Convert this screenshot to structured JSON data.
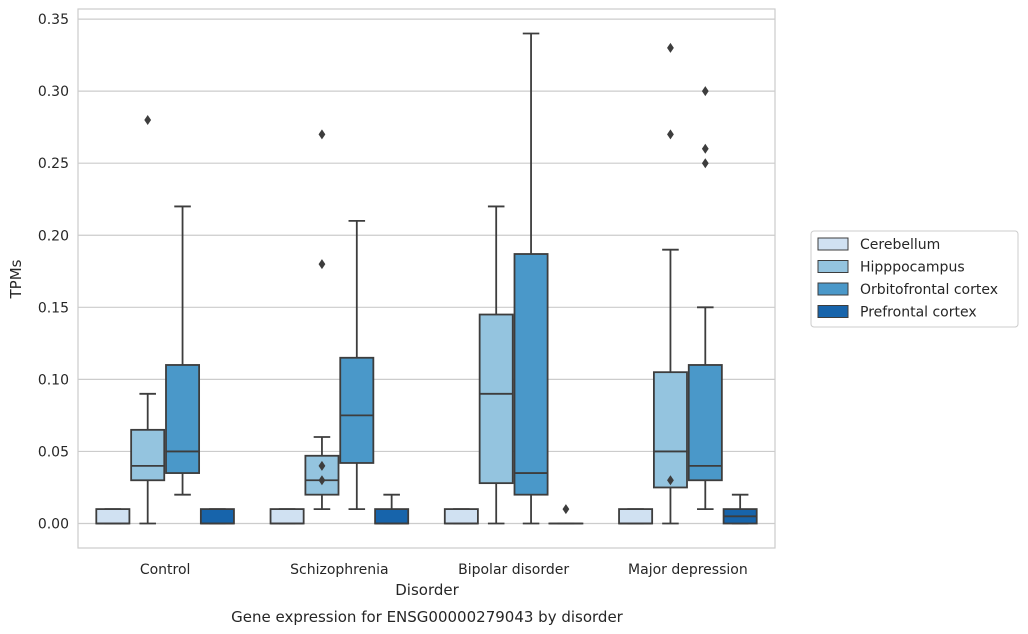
{
  "chart_data": {
    "type": "box",
    "title": "Gene expression for ENSG00000279043 by disorder",
    "xlabel": "Disorder",
    "ylabel": "TPMs",
    "ylim": [
      -0.017,
      0.357
    ],
    "yticks": [
      "0.00",
      "0.05",
      "0.10",
      "0.15",
      "0.20",
      "0.25",
      "0.30",
      "0.35"
    ],
    "categories": [
      "Control",
      "Schizophrenia",
      "Bipolar disorder",
      "Major depression"
    ],
    "grid": "horizontal",
    "legend_position": "right",
    "series": [
      {
        "name": "Cerebellum",
        "color": "#d0e1f2",
        "boxes": [
          {
            "q1": 0.0,
            "median": 0.0,
            "q3": 0.01,
            "whislo": 0.0,
            "whishi": 0.01,
            "fliers": []
          },
          {
            "q1": 0.0,
            "median": 0.0,
            "q3": 0.01,
            "whislo": 0.0,
            "whishi": 0.01,
            "fliers": []
          },
          {
            "q1": 0.0,
            "median": 0.0,
            "q3": 0.01,
            "whislo": 0.0,
            "whishi": 0.01,
            "fliers": []
          },
          {
            "q1": 0.0,
            "median": 0.0,
            "q3": 0.01,
            "whislo": 0.0,
            "whishi": 0.01,
            "fliers": []
          }
        ]
      },
      {
        "name": "Hipppocampus",
        "color": "#94c4df",
        "boxes": [
          {
            "q1": 0.03,
            "median": 0.04,
            "q3": 0.065,
            "whislo": 0.0,
            "whishi": 0.09,
            "fliers": [
              0.28
            ]
          },
          {
            "q1": 0.02,
            "median": 0.03,
            "q3": 0.047,
            "whislo": 0.01,
            "whishi": 0.06,
            "fliers": [
              0.03,
              0.04,
              0.18,
              0.27
            ]
          },
          {
            "q1": 0.028,
            "median": 0.09,
            "q3": 0.145,
            "whislo": 0.0,
            "whishi": 0.22,
            "fliers": []
          },
          {
            "q1": 0.025,
            "median": 0.05,
            "q3": 0.105,
            "whislo": 0.0,
            "whishi": 0.19,
            "fliers": [
              0.03,
              0.27,
              0.33
            ]
          }
        ]
      },
      {
        "name": "Orbitofrontal cortex",
        "color": "#4a98c9",
        "boxes": [
          {
            "q1": 0.035,
            "median": 0.05,
            "q3": 0.11,
            "whislo": 0.02,
            "whishi": 0.22,
            "fliers": []
          },
          {
            "q1": 0.042,
            "median": 0.075,
            "q3": 0.115,
            "whislo": 0.01,
            "whishi": 0.21,
            "fliers": []
          },
          {
            "q1": 0.02,
            "median": 0.035,
            "q3": 0.187,
            "whislo": 0.0,
            "whishi": 0.34,
            "fliers": []
          },
          {
            "q1": 0.03,
            "median": 0.04,
            "q3": 0.11,
            "whislo": 0.01,
            "whishi": 0.15,
            "fliers": [
              0.25,
              0.26,
              0.3
            ]
          }
        ]
      },
      {
        "name": "Prefrontal cortex",
        "color": "#1764ab",
        "boxes": [
          {
            "q1": 0.0,
            "median": 0.0,
            "q3": 0.01,
            "whislo": 0.0,
            "whishi": 0.01,
            "fliers": []
          },
          {
            "q1": 0.0,
            "median": 0.0,
            "q3": 0.01,
            "whislo": 0.0,
            "whishi": 0.02,
            "fliers": []
          },
          {
            "q1": 0.0,
            "median": 0.0,
            "q3": 0.0,
            "whislo": 0.0,
            "whishi": 0.0,
            "fliers": [
              0.01
            ]
          },
          {
            "q1": 0.0,
            "median": 0.005,
            "q3": 0.01,
            "whislo": 0.0,
            "whishi": 0.02,
            "fliers": []
          }
        ]
      }
    ]
  }
}
